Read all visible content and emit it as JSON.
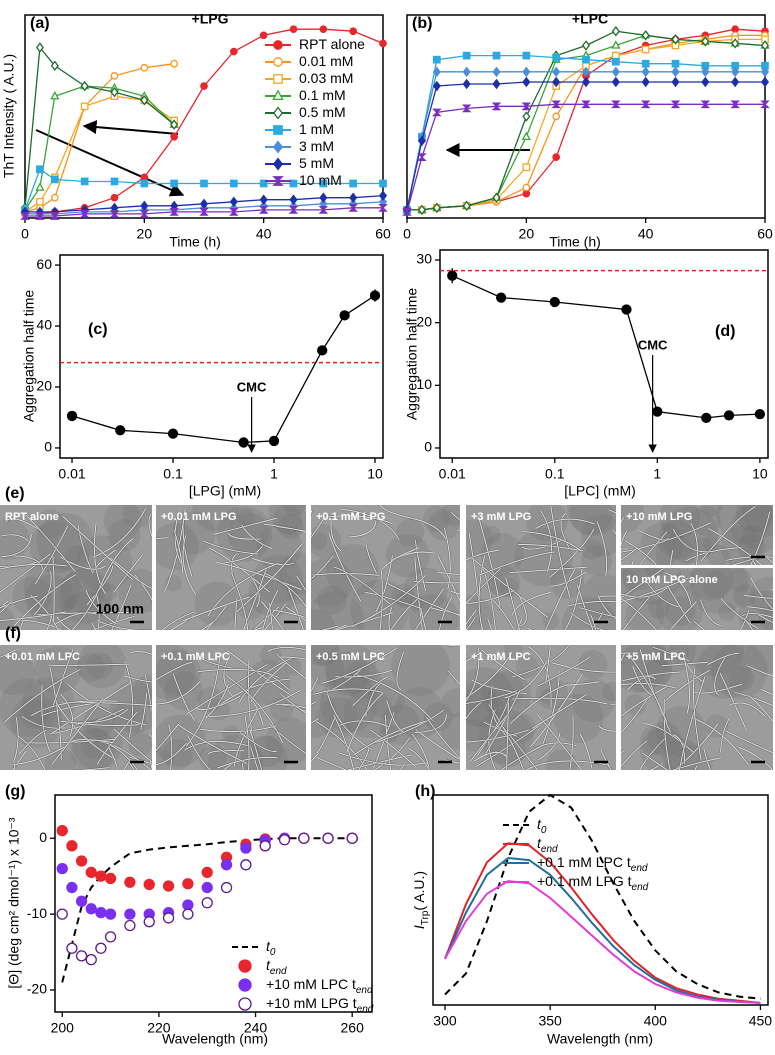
{
  "chart_data": [
    {
      "panel": "(a)",
      "type": "line",
      "annotation": "+LPG",
      "xlabel": "Time (h)",
      "ylabel": "ThT Intensity ( A.U.)",
      "x": [
        0,
        2.5,
        5,
        10,
        15,
        20,
        25,
        30,
        35,
        40,
        45,
        50,
        55,
        60
      ],
      "xlim": [
        0,
        60
      ],
      "xticks": [
        0,
        20,
        40,
        60
      ],
      "ylim": [
        0,
        100
      ],
      "legend": "upper right",
      "series": [
        {
          "name": "RPT alone",
          "color": "#e8262d",
          "marker": "circle",
          "filled": true,
          "values": [
            2,
            2,
            3,
            5,
            10,
            20,
            40,
            65,
            82,
            90,
            93,
            93,
            92,
            86
          ]
        },
        {
          "name": "0.01 mM",
          "color": "#f7941d",
          "marker": "circle",
          "filled": false,
          "values": [
            3,
            5,
            10,
            55,
            70,
            74,
            76,
            null,
            null,
            null,
            null,
            null,
            null,
            null
          ]
        },
        {
          "name": "0.03 mM",
          "color": "#f5a623",
          "marker": "square",
          "filled": false,
          "values": [
            3,
            8,
            20,
            55,
            60,
            58,
            48,
            null,
            null,
            null,
            null,
            null,
            null,
            null
          ]
        },
        {
          "name": "0.1 mM",
          "color": "#3aa534",
          "marker": "triangle",
          "filled": false,
          "values": [
            4,
            15,
            60,
            65,
            64,
            60,
            46,
            null,
            null,
            null,
            null,
            null,
            null,
            null
          ]
        },
        {
          "name": "0.5 mM",
          "color": "#1e6b2e",
          "marker": "diamond",
          "filled": false,
          "values": [
            5,
            84,
            75,
            65,
            62,
            58,
            46,
            null,
            null,
            null,
            null,
            null,
            null,
            null
          ]
        },
        {
          "name": "1 mM",
          "color": "#29abe2",
          "marker": "square",
          "filled": true,
          "values": [
            4,
            24,
            19,
            18,
            18,
            17,
            17,
            17,
            17,
            17,
            17,
            17,
            17,
            17
          ]
        },
        {
          "name": "3 mM",
          "color": "#4a8fd8",
          "marker": "diamond",
          "filled": true,
          "values": [
            2,
            2,
            2,
            3,
            3,
            4,
            4,
            5,
            5,
            6,
            6,
            7,
            7,
            8
          ]
        },
        {
          "name": "5 mM",
          "color": "#1f2fa8",
          "marker": "diamond",
          "filled": true,
          "values": [
            3,
            3,
            3,
            4,
            5,
            6,
            6,
            7,
            8,
            9,
            9,
            10,
            10,
            11
          ]
        },
        {
          "name": "10 mM",
          "color": "#7b2fbe",
          "marker": "hourglass",
          "filled": true,
          "values": [
            1,
            1,
            1,
            2,
            2,
            2,
            3,
            3,
            3,
            4,
            4,
            4,
            5,
            5
          ]
        }
      ]
    },
    {
      "panel": "(b)",
      "type": "line",
      "annotation": "+LPC",
      "xlabel": "Time (h)",
      "x": [
        0,
        2.5,
        5,
        10,
        15,
        20,
        25,
        30,
        35,
        40,
        45,
        50,
        55,
        60
      ],
      "xlim": [
        0,
        60
      ],
      "xticks": [
        0,
        20,
        40,
        60
      ],
      "ylim": [
        0,
        100
      ],
      "series": [
        {
          "color": "#e8262d",
          "marker": "circle",
          "filled": true,
          "values": [
            4,
            4,
            5,
            6,
            8,
            12,
            30,
            70,
            80,
            85,
            88,
            90,
            93,
            92
          ]
        },
        {
          "color": "#f7941d",
          "marker": "circle",
          "filled": false,
          "values": [
            4,
            4,
            5,
            6,
            8,
            15,
            50,
            75,
            80,
            83,
            86,
            88,
            90,
            90
          ]
        },
        {
          "color": "#f5a623",
          "marker": "square",
          "filled": false,
          "values": [
            4,
            4,
            5,
            6,
            9,
            25,
            65,
            75,
            80,
            83,
            85,
            87,
            88,
            88
          ]
        },
        {
          "color": "#3aa534",
          "marker": "triangle",
          "filled": false,
          "values": [
            4,
            4,
            5,
            6,
            10,
            40,
            78,
            80,
            85,
            90,
            88,
            87,
            86,
            85
          ]
        },
        {
          "color": "#1e6b2e",
          "marker": "diamond",
          "filled": false,
          "values": [
            4,
            4,
            5,
            6,
            10,
            50,
            80,
            85,
            92,
            90,
            88,
            87,
            86,
            85
          ]
        },
        {
          "color": "#29abe2",
          "marker": "square",
          "filled": true,
          "values": [
            4,
            40,
            78,
            80,
            80,
            80,
            79,
            78,
            77,
            76,
            76,
            75,
            75,
            75
          ]
        },
        {
          "color": "#4a8fd8",
          "marker": "diamond",
          "filled": true,
          "values": [
            4,
            40,
            72,
            72,
            72,
            72,
            72,
            72,
            72,
            72,
            72,
            72,
            72,
            72
          ]
        },
        {
          "color": "#1f2fa8",
          "marker": "diamond",
          "filled": true,
          "values": [
            4,
            38,
            65,
            66,
            66,
            67,
            67,
            67,
            67,
            67,
            67,
            67,
            67,
            67
          ]
        },
        {
          "color": "#7b2fbe",
          "marker": "hourglass",
          "filled": true,
          "values": [
            3,
            30,
            52,
            54,
            55,
            55,
            56,
            56,
            56,
            56,
            56,
            56,
            56,
            56
          ]
        }
      ]
    },
    {
      "panel": "(c)",
      "type": "line",
      "xlabel": "[LPG] (mM)",
      "ylabel": "Aggregation half time",
      "xscale": "log",
      "x": [
        0.01,
        0.03,
        0.1,
        0.5,
        1,
        3,
        5,
        10
      ],
      "xlim": [
        0.0076,
        12
      ],
      "xticks": [
        0.01,
        0.1,
        1,
        10
      ],
      "ylim": [
        -3.3,
        63.3
      ],
      "yticks": [
        0,
        20,
        40,
        60
      ],
      "reference_line": {
        "value": 28,
        "color": "#d62728"
      },
      "annotations": [
        {
          "text": "CMC",
          "x": 0.6
        }
      ],
      "series": [
        {
          "color": "#000000",
          "marker": "circle",
          "filled": true,
          "values": [
            10.5,
            5.8,
            4.7,
            1.8,
            2.3,
            32,
            43.5,
            50
          ],
          "errors": [
            0.5,
            0.5,
            0.5,
            0.5,
            0.5,
            0.5,
            1.2,
            2
          ]
        }
      ]
    },
    {
      "panel": "(d)",
      "type": "line",
      "xlabel": "[LPC] (mM)",
      "ylabel": "Aggregation half time",
      "xscale": "log",
      "x": [
        0.01,
        0.03,
        0.1,
        0.5,
        1,
        3,
        5,
        10
      ],
      "xlim": [
        0.0076,
        12
      ],
      "xticks": [
        0.01,
        0.1,
        1,
        10
      ],
      "ylim": [
        -1.6,
        31.6
      ],
      "yticks": [
        0,
        10,
        20,
        30
      ],
      "reference_line": {
        "value": 28.3,
        "color": "#d62728"
      },
      "annotations": [
        {
          "text": "CMC",
          "x": 0.9
        }
      ],
      "series": [
        {
          "color": "#000000",
          "marker": "circle",
          "filled": true,
          "values": [
            27.5,
            24,
            23.3,
            22.1,
            5.8,
            4.8,
            5.2,
            5.4
          ],
          "errors": [
            1.2,
            0.3,
            0.3,
            0.3,
            0.3,
            0.3,
            0.3,
            0.3
          ]
        }
      ]
    },
    {
      "panel": "(g)",
      "type": "line",
      "xlabel": "Wavelength (nm)",
      "ylabel": "[Θ] (deg cm² dmol⁻¹) x 10⁻³",
      "x": [
        200,
        202,
        204,
        206,
        208,
        210,
        214,
        218,
        222,
        226,
        230,
        234,
        238,
        242,
        246,
        250,
        255,
        260
      ],
      "xlim": [
        198.5,
        264.1
      ],
      "xticks": [
        200,
        220,
        240,
        260
      ],
      "ylim": [
        -22.9,
        5.7
      ],
      "yticks": [
        -20,
        -10,
        0
      ],
      "legend": "lower right",
      "series": [
        {
          "name": "t",
          "subscript": "0",
          "color": "#000000",
          "dash": true,
          "values": [
            -19,
            -14,
            -9,
            -6.5,
            -5,
            -3.8,
            -2,
            -1.5,
            -1.2,
            -1,
            -0.8,
            -0.5,
            -0.3,
            -0.1,
            0,
            0,
            0,
            0
          ]
        },
        {
          "name": "t",
          "subscript": "end",
          "color": "#e8262d",
          "marker": "circle",
          "filled": true,
          "line": false,
          "values": [
            1,
            -1,
            -3,
            -4.5,
            -5,
            -5.3,
            -5.8,
            -6.1,
            -6.3,
            -6,
            -4.5,
            -2.5,
            -0.8,
            -0.1,
            0,
            0,
            0,
            0
          ]
        },
        {
          "name": "+10 mM LPC t",
          "subscript": "end",
          "color": "#7b2ff0",
          "marker": "circle",
          "filled": true,
          "line": false,
          "values": [
            -4,
            -6.5,
            -8.3,
            -9.3,
            -9.8,
            -10,
            -10,
            -10,
            -9.8,
            -8.8,
            -6.5,
            -3.5,
            -1.3,
            -0.3,
            0,
            0,
            0,
            0
          ]
        },
        {
          "name": "+10 mM LPG t",
          "subscript": "end",
          "color": "#5b1a8c",
          "marker": "circle",
          "filled": false,
          "line": false,
          "values": [
            -10,
            -14.5,
            -15.5,
            -16,
            -14.5,
            -13,
            -11.5,
            -11,
            -10.5,
            -10,
            -8.5,
            -6.5,
            -3.5,
            -1,
            -0.2,
            0,
            0,
            0
          ]
        }
      ]
    },
    {
      "panel": "(h)",
      "type": "line",
      "xlabel": "Wavelength (nm)",
      "ylabel_prefix": "I",
      "ylabel_sub": "Trp",
      "ylabel": "( A.U.)",
      "x": [
        300,
        310,
        320,
        330,
        340,
        350,
        360,
        370,
        380,
        390,
        400,
        410,
        420,
        430,
        440,
        450
      ],
      "xlim": [
        294.3,
        453.6
      ],
      "xticks": [
        300,
        350,
        400,
        450
      ],
      "ylim": [
        0,
        100
      ],
      "legend": "upper right",
      "series": [
        {
          "name": "t",
          "subscript": "0",
          "color": "#000000",
          "dash": true,
          "values": [
            5,
            15,
            40,
            70,
            92,
            100,
            94,
            78,
            58,
            40,
            26,
            16,
            10,
            6,
            4,
            3
          ]
        },
        {
          "name": "t",
          "subscript": "end",
          "color": "#e0242a",
          "values": [
            22,
            48,
            68,
            77,
            76,
            68,
            56,
            43,
            31,
            21,
            13,
            8,
            5,
            3,
            2,
            1
          ]
        },
        {
          "name": "+0.1 mM LPC t",
          "subscript": "end",
          "color": "#1f6fa0",
          "values": [
            22,
            44,
            62,
            70,
            69,
            62,
            51,
            39,
            28,
            19,
            12,
            7,
            4,
            2.5,
            1.5,
            1
          ]
        },
        {
          "name": "+0.1 mM LPG t",
          "subscript": "end",
          "color": "#e33bd6",
          "values": [
            22,
            40,
            53,
            59,
            58,
            51,
            42,
            33,
            24,
            16,
            10,
            6,
            3.5,
            2,
            1.5,
            1
          ]
        }
      ]
    }
  ],
  "micrographs": [
    {
      "panel": "(e)",
      "labels": [
        "RPT alone",
        "+0.01 mM LPG",
        "+0.1 mM LPG",
        "+3 mM LPG",
        "+10 mM LPG",
        "10 mM LPG alone"
      ],
      "scale_bar": "100 nm"
    },
    {
      "panel": "(f)",
      "labels": [
        "+0.01 mM LPC",
        "+0.1 mM LPC",
        "+0.5 mM LPC",
        "+1 mM LPC",
        "+5 mM LPC"
      ]
    }
  ]
}
